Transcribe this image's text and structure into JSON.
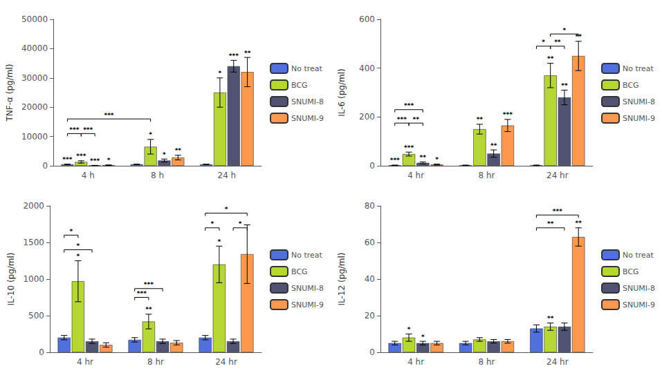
{
  "chart_data": [
    {
      "type": "bar",
      "ylabel": "TNF-α (pg/ml)",
      "categories": [
        "4 h",
        "8 h",
        "24 h"
      ],
      "ylim": [
        0,
        50000
      ],
      "yticks": [
        0,
        10000,
        20000,
        30000,
        40000,
        50000
      ],
      "grid": false,
      "legend": "right",
      "series": [
        {
          "name": "No treat",
          "values": [
            500,
            500,
            500
          ],
          "errors": [
            80,
            80,
            80
          ],
          "significance": [
            "***",
            null,
            null
          ]
        },
        {
          "name": "BCG",
          "values": [
            1300,
            6500,
            25000
          ],
          "errors": [
            400,
            2500,
            5000
          ],
          "significance": [
            "***",
            "*",
            "*"
          ]
        },
        {
          "name": "SNUMI-8",
          "values": [
            100,
            1800,
            34000
          ],
          "errors": [
            50,
            500,
            2000
          ],
          "significance": [
            "***",
            "*",
            "***"
          ]
        },
        {
          "name": "SNUMI-9",
          "values": [
            200,
            2800,
            32000
          ],
          "errors": [
            100,
            800,
            5000
          ],
          "significance": [
            "*",
            "**",
            "**"
          ]
        }
      ],
      "brackets": [
        {
          "from": {
            "category": "4 h",
            "series": "No treat"
          },
          "to": {
            "category": "8 h",
            "series": "BCG"
          },
          "y": 16000,
          "label": "***"
        },
        {
          "from": {
            "category": "4 h",
            "series": "No treat"
          },
          "to": {
            "category": "4 h",
            "series": "BCG"
          },
          "y": 11000,
          "label": "***"
        },
        {
          "from": {
            "category": "4 h",
            "series": "BCG"
          },
          "to": {
            "category": "4 h",
            "series": "SNUMI-8"
          },
          "y": 11000,
          "label": "***"
        }
      ]
    },
    {
      "type": "bar",
      "ylabel": "IL-6 (pg/ml)",
      "categories": [
        "4 hr",
        "8 hr",
        "24 hr"
      ],
      "ylim": [
        0,
        600
      ],
      "yticks": [
        0,
        200,
        400,
        600
      ],
      "grid": false,
      "legend": "right",
      "series": [
        {
          "name": "No treat",
          "values": [
            2,
            2,
            2
          ],
          "errors": [
            1,
            1,
            1
          ],
          "significance": [
            "***",
            null,
            null
          ]
        },
        {
          "name": "BCG",
          "values": [
            48,
            150,
            370
          ],
          "errors": [
            8,
            20,
            50
          ],
          "significance": [
            "***",
            "**",
            "**"
          ]
        },
        {
          "name": "SNUMI-8",
          "values": [
            12,
            50,
            280
          ],
          "errors": [
            4,
            15,
            30
          ],
          "significance": [
            "**",
            "**",
            "**"
          ]
        },
        {
          "name": "SNUMI-9",
          "values": [
            5,
            165,
            450
          ],
          "errors": [
            2,
            25,
            60
          ],
          "significance": [
            "*",
            "***",
            "**"
          ]
        }
      ],
      "brackets": [
        {
          "from": {
            "category": "4 hr",
            "series": "No treat"
          },
          "to": {
            "category": "4 hr",
            "series": "SNUMI-8"
          },
          "y": 230,
          "label": "***"
        },
        {
          "from": {
            "category": "4 hr",
            "series": "No treat"
          },
          "to": {
            "category": "4 hr",
            "series": "BCG"
          },
          "y": 175,
          "label": "***"
        },
        {
          "from": {
            "category": "4 hr",
            "series": "BCG"
          },
          "to": {
            "category": "4 hr",
            "series": "SNUMI-8"
          },
          "y": 175,
          "label": "**"
        },
        {
          "from": {
            "category": "24 hr",
            "series": "BCG"
          },
          "to": {
            "category": "24 hr",
            "series": "SNUMI-9"
          },
          "y": 540,
          "label": "*"
        },
        {
          "from": {
            "category": "24 hr",
            "series": "No treat"
          },
          "to": {
            "category": "24 hr",
            "series": "BCG"
          },
          "y": 490,
          "label": "*"
        },
        {
          "from": {
            "category": "24 hr",
            "series": "BCG"
          },
          "to": {
            "category": "24 hr",
            "series": "SNUMI-8"
          },
          "y": 490,
          "label": "**"
        }
      ]
    },
    {
      "type": "bar",
      "ylabel": "IL-10 (pg/ml)",
      "categories": [
        "4 hr",
        "8 hr",
        "24 hr"
      ],
      "ylim": [
        0,
        2000
      ],
      "yticks": [
        0,
        500,
        1000,
        1500,
        2000
      ],
      "grid": false,
      "legend": "right",
      "series": [
        {
          "name": "No treat",
          "values": [
            200,
            170,
            200
          ],
          "errors": [
            30,
            30,
            30
          ],
          "significance": [
            null,
            null,
            null
          ]
        },
        {
          "name": "BCG",
          "values": [
            970,
            420,
            1200
          ],
          "errors": [
            280,
            100,
            250
          ],
          "significance": [
            "*",
            "**",
            "*"
          ]
        },
        {
          "name": "SNUMI-8",
          "values": [
            150,
            150,
            150
          ],
          "errors": [
            30,
            30,
            30
          ],
          "significance": [
            null,
            null,
            null
          ]
        },
        {
          "name": "SNUMI-9",
          "values": [
            100,
            130,
            1340
          ],
          "errors": [
            30,
            30,
            400
          ],
          "significance": [
            null,
            null,
            null
          ]
        }
      ],
      "brackets": [
        {
          "from": {
            "category": "4 hr",
            "series": "No treat"
          },
          "to": {
            "category": "4 hr",
            "series": "BCG"
          },
          "y": 1600,
          "label": "*"
        },
        {
          "from": {
            "category": "4 hr",
            "series": "No treat"
          },
          "to": {
            "category": "4 hr",
            "series": "SNUMI-8"
          },
          "y": 1400,
          "label": "*"
        },
        {
          "from": {
            "category": "8 hr",
            "series": "No treat"
          },
          "to": {
            "category": "8 hr",
            "series": "BCG"
          },
          "y": 750,
          "label": "***"
        },
        {
          "from": {
            "category": "8 hr",
            "series": "No treat"
          },
          "to": {
            "category": "8 hr",
            "series": "SNUMI-8"
          },
          "y": 870,
          "label": "***"
        },
        {
          "from": {
            "category": "24 hr",
            "series": "No treat"
          },
          "to": {
            "category": "24 hr",
            "series": "SNUMI-9"
          },
          "y": 1900,
          "label": "*"
        },
        {
          "from": {
            "category": "24 hr",
            "series": "No treat"
          },
          "to": {
            "category": "24 hr",
            "series": "BCG"
          },
          "y": 1700,
          "label": "*"
        },
        {
          "from": {
            "category": "24 hr",
            "series": "SNUMI-8"
          },
          "to": {
            "category": "24 hr",
            "series": "SNUMI-9"
          },
          "y": 1700,
          "label": "*"
        }
      ]
    },
    {
      "type": "bar",
      "ylabel": "IL-12 (pg/ml)",
      "categories": [
        "4 hr",
        "8 hr",
        "24 hr"
      ],
      "ylim": [
        0,
        80
      ],
      "yticks": [
        0,
        20,
        40,
        60,
        80
      ],
      "grid": false,
      "legend": "right",
      "series": [
        {
          "name": "No treat",
          "values": [
            5,
            5,
            13
          ],
          "errors": [
            1,
            1,
            2
          ],
          "significance": [
            null,
            null,
            null
          ]
        },
        {
          "name": "BCG",
          "values": [
            8,
            7,
            14
          ],
          "errors": [
            2,
            1,
            2
          ],
          "significance": [
            "*",
            null,
            "**"
          ]
        },
        {
          "name": "SNUMI-8",
          "values": [
            5,
            6,
            14
          ],
          "errors": [
            1,
            1,
            2
          ],
          "significance": [
            "*",
            null,
            null
          ]
        },
        {
          "name": "SNUMI-9",
          "values": [
            5,
            6,
            63
          ],
          "errors": [
            1,
            1,
            5
          ],
          "significance": [
            null,
            null,
            "**"
          ]
        }
      ],
      "brackets": [
        {
          "from": {
            "category": "24 hr",
            "series": "No treat"
          },
          "to": {
            "category": "24 hr",
            "series": "SNUMI-9"
          },
          "y": 75,
          "label": "***"
        },
        {
          "from": {
            "category": "24 hr",
            "series": "No treat"
          },
          "to": {
            "category": "24 hr",
            "series": "SNUMI-8"
          },
          "y": 68,
          "label": "**"
        }
      ]
    }
  ]
}
